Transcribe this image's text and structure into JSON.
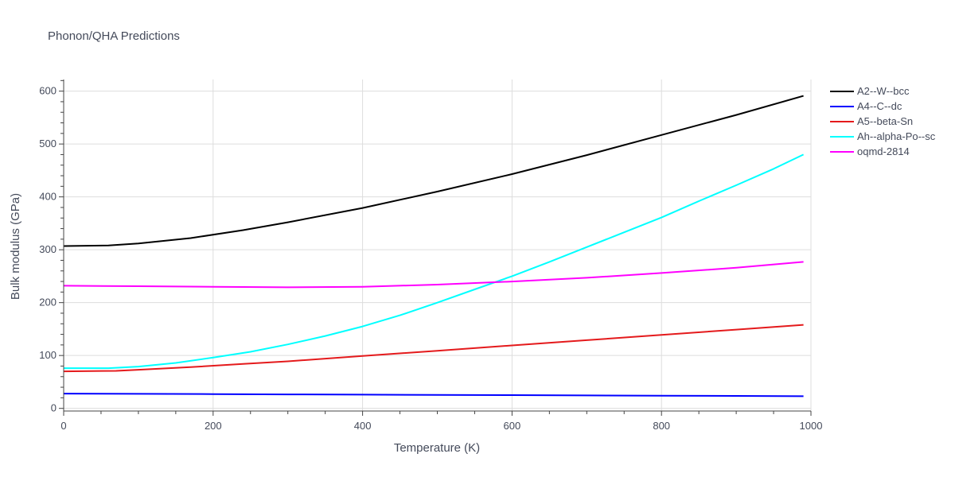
{
  "chart_data": {
    "type": "line",
    "title": "Phonon/QHA Predictions",
    "xlabel": "Temperature (K)",
    "ylabel": "Bulk modulus (GPa)",
    "xlim": [
      0,
      1000
    ],
    "ylim": [
      -5,
      622
    ],
    "xticks": [
      0,
      200,
      400,
      600,
      800,
      1000
    ],
    "yticks": [
      0,
      100,
      200,
      300,
      400,
      500,
      600
    ],
    "grid": true,
    "legend": "top-right, outside plot",
    "series": [
      {
        "name": "A2--W--bcc",
        "color": "#000000",
        "x": [
          0,
          60,
          100,
          170,
          240,
          300,
          400,
          500,
          600,
          700,
          800,
          900,
          990
        ],
        "y": [
          307,
          308,
          312,
          322,
          337,
          352,
          379,
          410,
          443,
          479,
          517,
          555,
          591
        ]
      },
      {
        "name": "A4--C--dc",
        "color": "#0000ff",
        "x": [
          0,
          100,
          200,
          300,
          400,
          500,
          600,
          700,
          800,
          900,
          990
        ],
        "y": [
          28,
          27.5,
          27,
          26.5,
          26,
          25.5,
          25,
          24.5,
          24,
          23.5,
          23
        ]
      },
      {
        "name": "A5--beta-Sn",
        "color": "#e41a1c",
        "x": [
          0,
          70,
          100,
          170,
          240,
          300,
          400,
          500,
          600,
          700,
          800,
          900,
          990
        ],
        "y": [
          70,
          71,
          73,
          78,
          84,
          89,
          99,
          109,
          119,
          129,
          139,
          149,
          158
        ]
      },
      {
        "name": "Ah--alpha-Po--sc",
        "color": "#00ffff",
        "x": [
          0,
          60,
          100,
          150,
          200,
          250,
          300,
          350,
          400,
          450,
          500,
          550,
          600,
          650,
          700,
          750,
          800,
          850,
          900,
          950,
          990
        ],
        "y": [
          76,
          76,
          79,
          86,
          96,
          107,
          121,
          137,
          155,
          176,
          200,
          225,
          250,
          277,
          305,
          333,
          361,
          392,
          422,
          453,
          480
        ]
      },
      {
        "name": "oqmd-2814",
        "color": "#ff00ff",
        "x": [
          0,
          100,
          200,
          300,
          400,
          500,
          600,
          700,
          800,
          900,
          990
        ],
        "y": [
          232,
          231,
          230,
          229,
          230,
          234,
          240,
          247,
          256,
          266,
          277
        ]
      }
    ]
  }
}
